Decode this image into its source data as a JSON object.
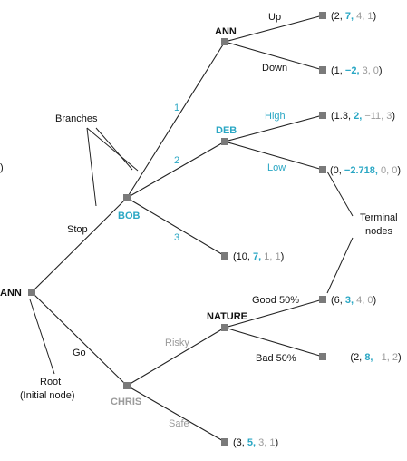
{
  "players": {
    "ann_root": "ANN",
    "bob": "BOB",
    "chris": "CHRIS",
    "ann_top": "ANN",
    "deb": "DEB",
    "nature": "NATURE",
    "edge_clip": ")"
  },
  "actions": {
    "stop": "Stop",
    "go": "Go",
    "one": "1",
    "two": "2",
    "three": "3",
    "up": "Up",
    "down": "Down",
    "high": "High",
    "low": "Low",
    "risky": "Risky",
    "safe": "Safe",
    "good": "Good 50%",
    "bad": "Bad 50%"
  },
  "annotations": {
    "branches": "Branches",
    "terminal_line1": "Terminal",
    "terminal_line2": "nodes",
    "root_line1": "Root",
    "root_line2": "(Initial node)"
  },
  "payoffs": {
    "up": {
      "open": "(2, ",
      "ann": "7,",
      "rest1": " 4, 1",
      "close": ")"
    },
    "down": {
      "open": "(1, ",
      "ann": "−2,",
      "rest1": " 3, 0",
      "close": ")"
    },
    "high": {
      "open": "(1.3, ",
      "ann": "2,",
      "rest1": " −11, 3",
      "close": ")"
    },
    "low": {
      "open": "(0, ",
      "ann": "−2.718,",
      "rest1": " 0, 0",
      "close": ")"
    },
    "three": {
      "open": "(10, ",
      "ann": "7,",
      "rest1": " 1, 1",
      "close": ")"
    },
    "good": {
      "open": "(6, ",
      "ann": "3,",
      "rest1": " 4, 0",
      "close": ")"
    },
    "bad": {
      "open": "(2, ",
      "ann": "8,",
      "rest1": "   1, 2",
      "close": ")"
    },
    "safe": {
      "open": "(3, ",
      "ann": "5,",
      "rest1": " 3, 1",
      "close": ")"
    }
  },
  "colors": {
    "bob_accent": "#2aa7c4",
    "chris_accent": "#9a9a9a",
    "node_fill": "#7a7a7a"
  }
}
